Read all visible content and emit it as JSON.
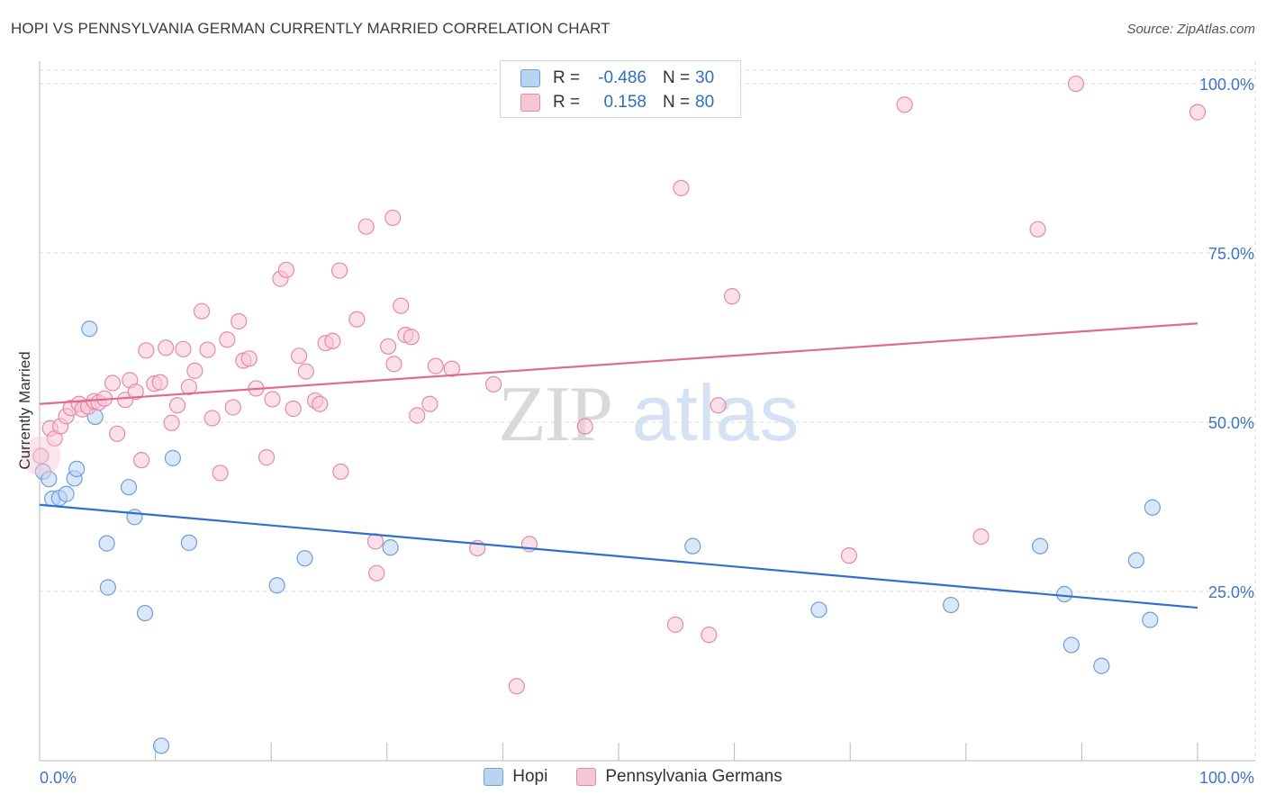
{
  "header": {
    "title": "HOPI VS PENNSYLVANIA GERMAN CURRENTLY MARRIED CORRELATION CHART",
    "source": "Source: ZipAtlas.com"
  },
  "legend": {
    "rows": [
      {
        "r_label": "R =",
        "r_value": "-0.486",
        "n_label": "N =",
        "n_value": "30"
      },
      {
        "r_label": "R =",
        "r_value": "0.158",
        "n_label": "N =",
        "n_value": "80"
      }
    ],
    "bottom": [
      "Hopi",
      "Pennsylvania Germans"
    ]
  },
  "watermark": {
    "zip": "ZIP",
    "atlas": "atlas"
  },
  "colors": {
    "hopi_fill": "#b9d3f3",
    "hopi_stroke": "#6e9fd9",
    "hopi_line": "#2f6fd0",
    "pg_fill": "#f7c6d5",
    "pg_stroke": "#e58aa8",
    "pg_line": "#e06a95",
    "grid": "#d9d9d9",
    "axis_text": "#3d74c4"
  },
  "chart_data": {
    "type": "scatter",
    "title": "HOPI VS PENNSYLVANIA GERMAN CURRENTLY MARRIED CORRELATION CHART",
    "xlabel": "",
    "ylabel": "Currently Married",
    "xlim": [
      0,
      100
    ],
    "ylim": [
      0,
      102
    ],
    "x_tick_labels": [
      "0.0%",
      "100.0%"
    ],
    "y_ticks": [
      25,
      50,
      75,
      100
    ],
    "y_tick_labels": [
      "25.0%",
      "50.0%",
      "75.0%",
      "100.0%"
    ],
    "grid": true,
    "legend_position": "top-center",
    "series": [
      {
        "name": "Hopi",
        "r": -0.486,
        "n": 30,
        "trend": [
          [
            0,
            37.8
          ],
          [
            100,
            22.6
          ]
        ],
        "points": [
          [
            0.3,
            42.7
          ],
          [
            0.8,
            41.6
          ],
          [
            1.1,
            38.7
          ],
          [
            1.7,
            38.8
          ],
          [
            2.3,
            39.4
          ],
          [
            3.0,
            41.7
          ],
          [
            3.2,
            43.1
          ],
          [
            4.3,
            63.8
          ],
          [
            4.8,
            50.8
          ],
          [
            5.8,
            32.1
          ],
          [
            5.9,
            25.6
          ],
          [
            7.7,
            40.4
          ],
          [
            8.2,
            36.0
          ],
          [
            9.1,
            21.8
          ],
          [
            10.5,
            2.2
          ],
          [
            11.5,
            44.7
          ],
          [
            12.9,
            32.2
          ],
          [
            20.5,
            25.9
          ],
          [
            22.9,
            29.9
          ],
          [
            30.3,
            31.5
          ],
          [
            56.4,
            31.7
          ],
          [
            67.3,
            22.3
          ],
          [
            78.7,
            23.0
          ],
          [
            86.4,
            31.7
          ],
          [
            88.5,
            24.6
          ],
          [
            89.1,
            17.1
          ],
          [
            91.7,
            14.0
          ],
          [
            94.7,
            29.6
          ],
          [
            95.9,
            20.8
          ],
          [
            96.1,
            37.4
          ]
        ]
      },
      {
        "name": "Pennsylvania Germans",
        "r": 0.158,
        "n": 80,
        "trend": [
          [
            0,
            52.7
          ],
          [
            100,
            64.6
          ]
        ],
        "points": [
          [
            0.1,
            45.0
          ],
          [
            0.9,
            49.1
          ],
          [
            1.3,
            47.6
          ],
          [
            1.8,
            49.4
          ],
          [
            2.3,
            50.9
          ],
          [
            2.7,
            52.1
          ],
          [
            3.4,
            52.7
          ],
          [
            3.7,
            51.9
          ],
          [
            4.2,
            52.3
          ],
          [
            4.7,
            53.1
          ],
          [
            5.1,
            52.9
          ],
          [
            5.6,
            53.5
          ],
          [
            6.3,
            55.8
          ],
          [
            6.7,
            48.3
          ],
          [
            7.4,
            53.3
          ],
          [
            7.8,
            56.2
          ],
          [
            8.3,
            54.5
          ],
          [
            8.8,
            44.4
          ],
          [
            9.2,
            60.6
          ],
          [
            9.9,
            55.7
          ],
          [
            10.4,
            55.9
          ],
          [
            10.9,
            61.0
          ],
          [
            11.4,
            49.9
          ],
          [
            11.9,
            52.5
          ],
          [
            12.4,
            60.8
          ],
          [
            12.9,
            55.2
          ],
          [
            13.4,
            57.6
          ],
          [
            14.0,
            66.4
          ],
          [
            14.5,
            60.7
          ],
          [
            14.9,
            50.6
          ],
          [
            15.6,
            42.5
          ],
          [
            16.2,
            62.2
          ],
          [
            16.7,
            52.2
          ],
          [
            17.2,
            64.9
          ],
          [
            17.6,
            59.1
          ],
          [
            18.1,
            59.4
          ],
          [
            18.7,
            55.0
          ],
          [
            19.6,
            44.8
          ],
          [
            20.1,
            53.4
          ],
          [
            20.8,
            71.2
          ],
          [
            21.3,
            72.5
          ],
          [
            21.9,
            52.0
          ],
          [
            22.4,
            59.8
          ],
          [
            23.0,
            57.5
          ],
          [
            23.8,
            53.2
          ],
          [
            24.2,
            52.7
          ],
          [
            24.7,
            61.7
          ],
          [
            25.3,
            62.0
          ],
          [
            25.9,
            72.4
          ],
          [
            26.0,
            42.7
          ],
          [
            27.4,
            65.2
          ],
          [
            28.2,
            78.9
          ],
          [
            29.0,
            32.4
          ],
          [
            29.1,
            27.7
          ],
          [
            30.1,
            61.2
          ],
          [
            30.5,
            80.2
          ],
          [
            30.6,
            58.6
          ],
          [
            31.2,
            67.2
          ],
          [
            31.6,
            62.9
          ],
          [
            32.1,
            62.6
          ],
          [
            32.6,
            51.0
          ],
          [
            33.7,
            52.7
          ],
          [
            34.2,
            58.3
          ],
          [
            35.6,
            57.9
          ],
          [
            37.8,
            31.4
          ],
          [
            39.2,
            55.6
          ],
          [
            41.2,
            11.0
          ],
          [
            42.3,
            32.0
          ],
          [
            47.1,
            49.4
          ],
          [
            55.4,
            84.6
          ],
          [
            54.9,
            20.1
          ],
          [
            57.8,
            18.6
          ],
          [
            58.6,
            52.5
          ],
          [
            59.8,
            68.6
          ],
          [
            69.9,
            30.3
          ],
          [
            74.7,
            96.9
          ],
          [
            81.3,
            33.1
          ],
          [
            86.2,
            78.5
          ],
          [
            89.5,
            100.0
          ],
          [
            100.0,
            95.8
          ]
        ]
      }
    ]
  }
}
